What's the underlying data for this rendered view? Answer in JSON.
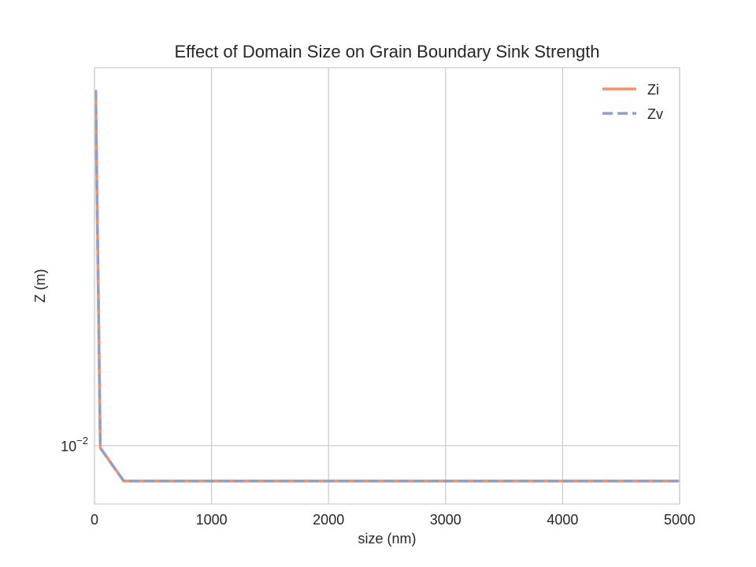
{
  "chart_data": {
    "type": "line",
    "title": "Effect of Domain Size on Grain Boundary Sink Strength",
    "xlabel": "size (nm)",
    "ylabel": "Z (m)",
    "xlim": [
      0,
      5000
    ],
    "ylim": [
      0.0078,
      0.05
    ],
    "yscale": "log",
    "grid": true,
    "legend_position": "top-right",
    "x_ticks": [
      {
        "value": 0,
        "label": "0"
      },
      {
        "value": 1000,
        "label": "1000"
      },
      {
        "value": 2000,
        "label": "2000"
      },
      {
        "value": 3000,
        "label": "3000"
      },
      {
        "value": 4000,
        "label": "4000"
      },
      {
        "value": 5000,
        "label": "5000"
      }
    ],
    "y_ticks": [
      {
        "value": 0.01,
        "base": "10",
        "exponent": "−2"
      }
    ],
    "series": [
      {
        "name": "Zi",
        "color": "#fc8d62",
        "style": "solid",
        "x": [
          10,
          50,
          250,
          1000,
          5000
        ],
        "y": [
          0.0455,
          0.0099,
          0.0086,
          0.0086,
          0.0086
        ]
      },
      {
        "name": "Zv",
        "color": "#8da0cb",
        "style": "dashed",
        "x": [
          10,
          50,
          250,
          1000,
          5000
        ],
        "y": [
          0.0455,
          0.0099,
          0.0086,
          0.0086,
          0.0086
        ]
      }
    ]
  }
}
